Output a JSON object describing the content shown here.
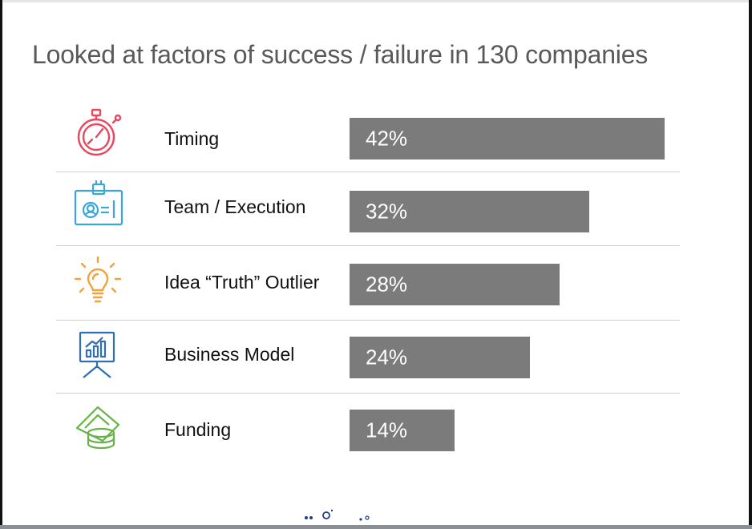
{
  "title": "Looked at factors of success / failure in 130 companies",
  "chart_data": {
    "type": "bar",
    "orientation": "horizontal",
    "title": "Looked at factors of success / failure in 130 companies",
    "categories": [
      "Timing",
      "Team / Execution",
      "Idea “Truth” Outlier",
      "Business Model",
      "Funding"
    ],
    "values": [
      42,
      32,
      28,
      24,
      14
    ],
    "value_labels": [
      "42%",
      "32%",
      "28%",
      "24%",
      "14%"
    ],
    "unit": "%",
    "icons": [
      "stopwatch-icon",
      "id-badge-icon",
      "lightbulb-icon",
      "presentation-chart-icon",
      "money-stack-icon"
    ],
    "icon_colors": [
      "#e8475f",
      "#3aa7d9",
      "#f3a23a",
      "#2e6fb5",
      "#6ab14a"
    ],
    "bar_color": "#7b7b7b",
    "xlim": [
      0,
      42
    ],
    "grid": false,
    "legend": "none"
  }
}
